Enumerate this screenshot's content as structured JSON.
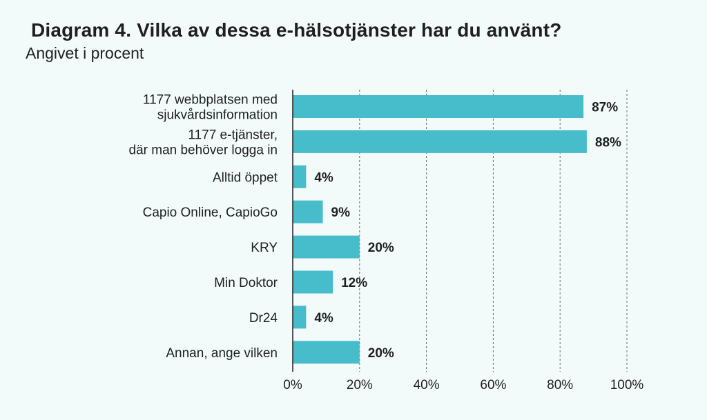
{
  "chart_data": {
    "type": "bar",
    "orientation": "horizontal",
    "title": "Diagram 4. Vilka av dessa e-hälsotjänster har du använt?",
    "subtitle": "Angivet i procent",
    "categories": [
      [
        "1177 webbplatsen med",
        "sjukvårdsinformation"
      ],
      [
        "1177 e-tjänster,",
        "där man behöver logga in"
      ],
      [
        "Alltid öppet"
      ],
      [
        "Capio Online, CapioGo"
      ],
      [
        "KRY"
      ],
      [
        "Min Doktor"
      ],
      [
        "Dr24"
      ],
      [
        "Annan, ange vilken"
      ]
    ],
    "values": [
      87,
      88,
      4,
      9,
      20,
      12,
      4,
      20
    ],
    "value_labels": [
      "87%",
      "88%",
      "4%",
      "9%",
      "20%",
      "12%",
      "4%",
      "20%"
    ],
    "xlim": [
      0,
      100
    ],
    "xticks": [
      0,
      20,
      40,
      60,
      80,
      100
    ],
    "xtick_labels": [
      "0%",
      "20%",
      "40%",
      "60%",
      "80%",
      "100%"
    ],
    "grid": "vertical dashed",
    "bar_color": "#47bdcc"
  }
}
